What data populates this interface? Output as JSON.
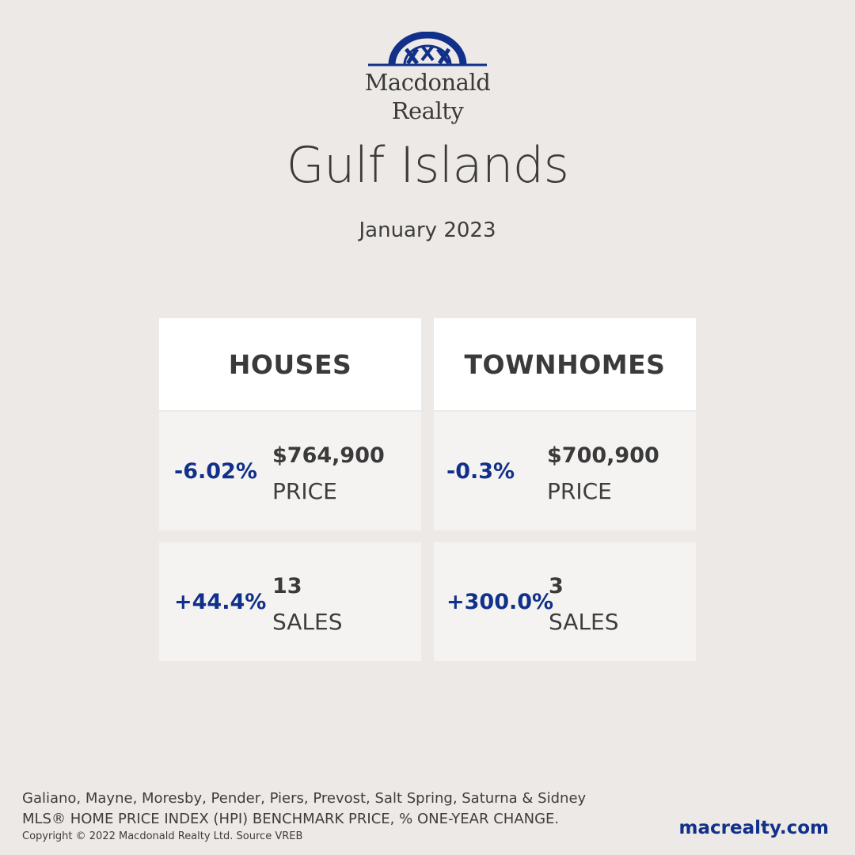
{
  "brand": {
    "logo_text": [
      "Macdonald",
      "Realty"
    ],
    "brand_color": "#10308a"
  },
  "title": "Gulf Islands",
  "subtitle": "January 2023",
  "houses": {
    "heading": "HOUSES",
    "price": {
      "change": "-6.02%",
      "value": "$764,900",
      "label": "PRICE"
    },
    "sales": {
      "change": "+44.4%",
      "value": "13",
      "label": "SALES"
    }
  },
  "townhomes": {
    "heading": "TOWNHOMES",
    "price": {
      "change": "-0.3%",
      "value": "$700,900",
      "label": "PRICE"
    },
    "sales": {
      "change": "+300.0%",
      "value": "3",
      "label": "SALES"
    }
  },
  "footer": {
    "areas": "Galiano, Mayne, Moresby, Pender, Piers, Prevost, Salt Spring, Saturna & Sidney",
    "index_note": "MLS® HOME PRICE INDEX (HPI) BENCHMARK PRICE, % ONE-YEAR CHANGE.",
    "copyright": "Copyright © 2022 Macdonald Realty Ltd. Source VREB",
    "website": "macrealty.com"
  }
}
